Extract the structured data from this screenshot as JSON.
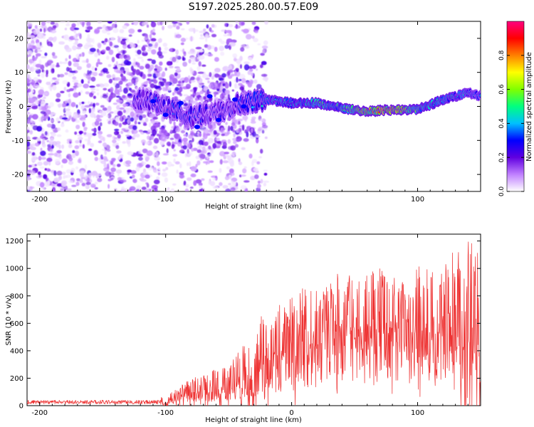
{
  "title": "S197.2025.280.00.57.E09",
  "chart_data": [
    {
      "type": "heatmap",
      "title": "S197.2025.280.00.57.E09",
      "xlabel": "Height of straight line (km)",
      "ylabel": "Frequency (Hz)",
      "xlim": [
        -210,
        150
      ],
      "ylim": [
        -25,
        25
      ],
      "xticks": [
        -200,
        -100,
        0,
        100
      ],
      "yticks": [
        -20,
        -10,
        0,
        10,
        20
      ],
      "colorbar": {
        "label": "Normalized spectral amplitude",
        "range": [
          0,
          1
        ],
        "ticks": [
          "0.0",
          "0.2",
          "0.4",
          "0.6",
          "0.8"
        ],
        "colors": [
          "#ffffff",
          "#c080ff",
          "#6000e0",
          "#0000ff",
          "#00c0ff",
          "#00ff80",
          "#80ff00",
          "#ffff00",
          "#ff8000",
          "#ff0000",
          "#ff0080"
        ]
      },
      "ridge": {
        "x": [
          -120,
          -100,
          -80,
          -60,
          -40,
          -20,
          0,
          20,
          40,
          60,
          80,
          100,
          120,
          140,
          150
        ],
        "frequency": [
          2,
          0,
          -3,
          -2,
          1,
          2,
          1,
          1,
          -0.5,
          -1.5,
          -1,
          -1,
          2,
          4,
          3
        ],
        "peak_amplitude": [
          0.3,
          0.35,
          0.35,
          0.3,
          0.35,
          0.45,
          0.5,
          0.55,
          0.55,
          0.85,
          0.9,
          0.6,
          0.5,
          0.45,
          0.4
        ]
      }
    },
    {
      "type": "line",
      "xlabel": "Height of straight line (km)",
      "ylabel": "SNR (10 * v/v)",
      "xlim": [
        -210,
        150
      ],
      "ylim": [
        0,
        1250
      ],
      "xticks": [
        -200,
        -100,
        0,
        100
      ],
      "yticks": [
        0,
        200,
        400,
        600,
        800,
        1000,
        1200
      ],
      "color": "#ee3333",
      "envelope": {
        "x": [
          -210,
          -150,
          -110,
          -100,
          -90,
          -80,
          -70,
          -60,
          -50,
          -40,
          -35,
          -30,
          -25,
          -20,
          -10,
          0,
          10,
          20,
          30,
          40,
          50,
          60,
          70,
          80,
          90,
          100,
          110,
          120,
          130,
          140,
          150
        ],
        "mean": [
          20,
          20,
          22,
          30,
          70,
          90,
          100,
          110,
          120,
          180,
          220,
          130,
          320,
          340,
          380,
          430,
          480,
          530,
          560,
          570,
          580,
          570,
          560,
          560,
          570,
          590,
          600,
          600,
          520,
          480,
          400
        ],
        "peak": [
          45,
          45,
          50,
          70,
          140,
          200,
          220,
          270,
          290,
          420,
          480,
          330,
          680,
          640,
          740,
          800,
          880,
          900,
          880,
          1020,
          920,
          960,
          1000,
          960,
          900,
          1050,
          1000,
          1020,
          1160,
          1220,
          1100
        ]
      }
    }
  ]
}
